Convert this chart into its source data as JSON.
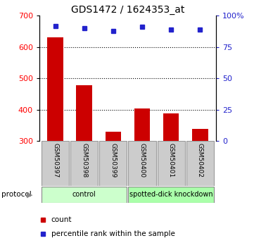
{
  "title": "GDS1472 / 1624353_at",
  "samples": [
    "GSM50397",
    "GSM50398",
    "GSM50399",
    "GSM50400",
    "GSM50401",
    "GSM50402"
  ],
  "counts": [
    632,
    478,
    330,
    403,
    388,
    338
  ],
  "percentile_ranks": [
    92,
    90,
    88,
    91,
    89,
    89
  ],
  "ymin": 300,
  "ymax": 700,
  "yticks_left": [
    300,
    400,
    500,
    600,
    700
  ],
  "yticks_right": [
    0,
    25,
    50,
    75,
    100
  ],
  "bar_color": "#cc0000",
  "dot_color": "#2222cc",
  "protocol_groups": [
    {
      "label": "control",
      "start": 0,
      "end": 3,
      "color": "#ccffcc"
    },
    {
      "label": "spotted-dick knockdown",
      "start": 3,
      "end": 6,
      "color": "#aaffaa"
    }
  ],
  "protocol_label": "protocol",
  "legend_count_label": "count",
  "legend_pct_label": "percentile rank within the sample",
  "title_fontsize": 10,
  "tick_fontsize": 8,
  "sample_fontsize": 6.5,
  "proto_fontsize": 7,
  "legend_fontsize": 7.5
}
